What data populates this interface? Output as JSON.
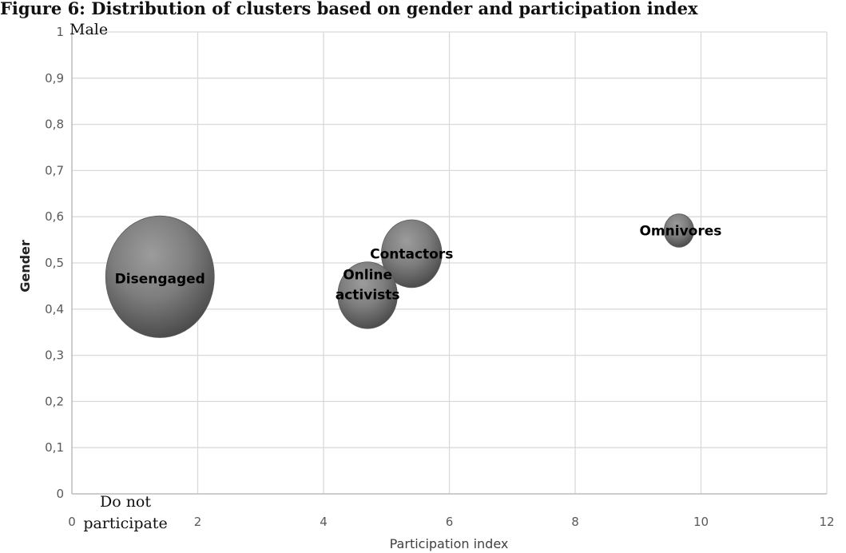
{
  "title": "Figure 6: Distribution of clusters based on gender and participation index",
  "chart_data": {
    "type": "bubble",
    "title": "Figure 6: Distribution of clusters based on gender and participation index",
    "xlabel": "Participation index",
    "ylabel": "Gender",
    "xlim": [
      0,
      12
    ],
    "ylim": [
      0,
      1
    ],
    "x_ticks": [
      "0",
      "2",
      "4",
      "6",
      "8",
      "10",
      "12"
    ],
    "y_ticks": [
      "0",
      "0,1",
      "0,2",
      "0,3",
      "0,4",
      "0,5",
      "0,6",
      "0,7",
      "0,8",
      "0,9",
      "1"
    ],
    "grid": true,
    "points": [
      {
        "label": "Disengaged",
        "x": 1.4,
        "y": 0.47,
        "size": 1.0
      },
      {
        "label": "Online activists",
        "x": 4.7,
        "y": 0.43,
        "size": 0.3
      },
      {
        "label": "Contactors",
        "x": 5.4,
        "y": 0.52,
        "size": 0.31
      },
      {
        "label": "Omnivores",
        "x": 9.65,
        "y": 0.57,
        "size": 0.075
      }
    ],
    "annotations": [
      "Male",
      "Do not participate"
    ]
  }
}
